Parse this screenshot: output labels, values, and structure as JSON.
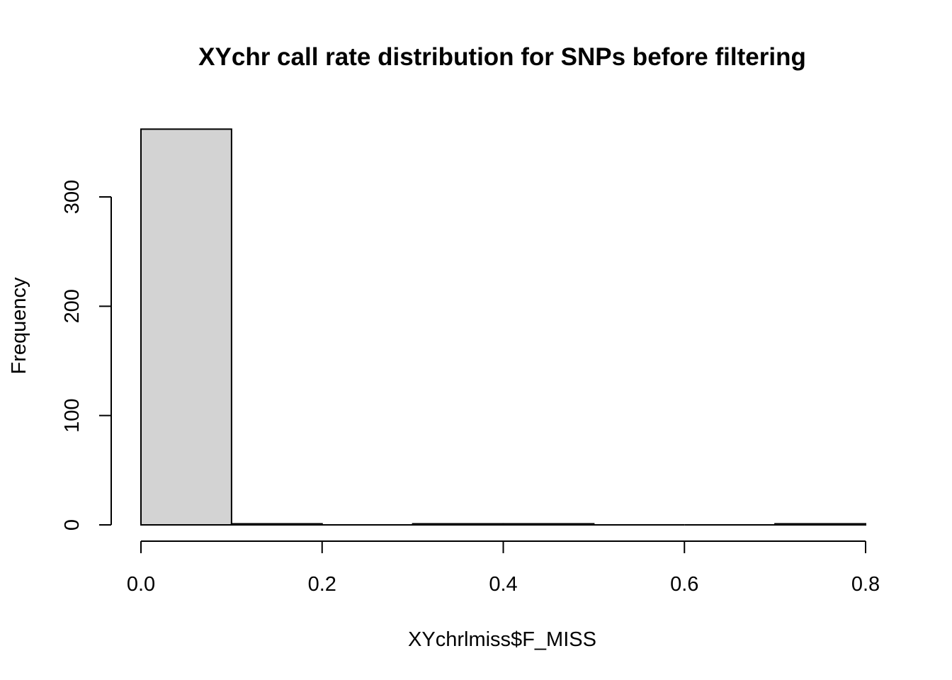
{
  "chart_data": {
    "type": "bar",
    "title": "XYchr call rate distribution for SNPs before filtering",
    "xlabel": "XYchrlmiss$F_MISS",
    "ylabel": "Frequency",
    "bins": [
      {
        "x0": 0.0,
        "x1": 0.1,
        "count": 362
      },
      {
        "x0": 0.1,
        "x1": 0.2,
        "count": 1
      },
      {
        "x0": 0.2,
        "x1": 0.3,
        "count": 0
      },
      {
        "x0": 0.3,
        "x1": 0.4,
        "count": 1
      },
      {
        "x0": 0.4,
        "x1": 0.5,
        "count": 1
      },
      {
        "x0": 0.5,
        "x1": 0.6,
        "count": 0
      },
      {
        "x0": 0.6,
        "x1": 0.7,
        "count": 0
      },
      {
        "x0": 0.7,
        "x1": 0.8,
        "count": 1
      }
    ],
    "xlim": [
      0.0,
      0.8
    ],
    "ylim": [
      0,
      362
    ],
    "xticks": [
      0.0,
      0.2,
      0.4,
      0.6,
      0.8
    ],
    "xtick_labels": [
      "0.0",
      "0.2",
      "0.4",
      "0.6",
      "0.8"
    ],
    "yticks": [
      0,
      100,
      200,
      300
    ],
    "ytick_labels": [
      "0",
      "100",
      "200",
      "300"
    ],
    "bar_color": "#d3d3d3",
    "bar_border_color": "#000000",
    "grid": false,
    "legend": "none"
  }
}
